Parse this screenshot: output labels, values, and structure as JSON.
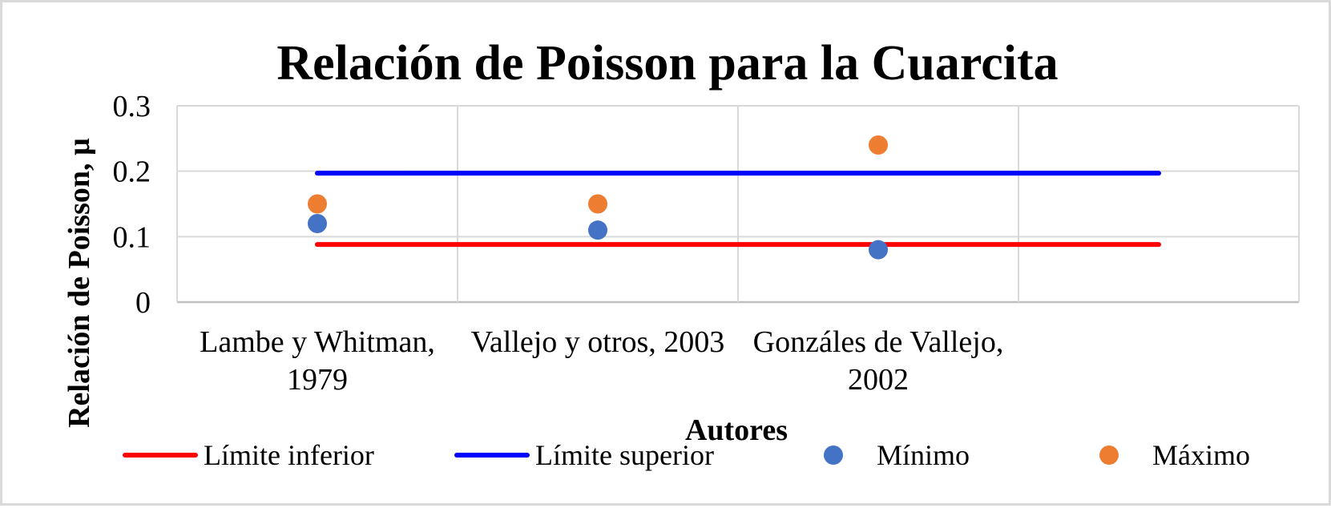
{
  "chart_data": {
    "type": "scatter",
    "title": "Relación de Poisson para la Cuarcita",
    "xlabel": "Autores",
    "ylabel": "Relación de Poisson, µ",
    "categories": [
      "Lambe y Whitman, 1979",
      "Vallejo y otros, 2003",
      "Gonzáles de Vallejo, 2002",
      ""
    ],
    "category_label_lines": [
      [
        "Lambe y Whitman,",
        "1979"
      ],
      [
        "Vallejo y otros, 2003"
      ],
      [
        "Gonzáles de Vallejo,",
        "2002"
      ],
      [
        ""
      ]
    ],
    "ylim": [
      0,
      0.3
    ],
    "yticks": [
      0,
      0.1,
      0.2,
      0.3
    ],
    "ytick_labels": [
      "0",
      "0.1",
      "0.2",
      "0.3"
    ],
    "grid": true,
    "legend_position": "bottom",
    "series": [
      {
        "name": "Límite  inferior",
        "kind": "line",
        "values": [
          0.088,
          0.088,
          0.088,
          0.088
        ],
        "color": "#ff0000"
      },
      {
        "name": "Límite  superior",
        "kind": "line",
        "values": [
          0.197,
          0.197,
          0.197,
          0.197
        ],
        "color": "#0000ff"
      },
      {
        "name": "Mínimo",
        "kind": "marker",
        "values": [
          0.12,
          0.11,
          0.08,
          null
        ],
        "color": "#4472c4"
      },
      {
        "name": "Máximo",
        "kind": "marker",
        "values": [
          0.15,
          0.15,
          0.24,
          null
        ],
        "color": "#ed7d31"
      }
    ],
    "colors": {
      "grid": "#d9d9d9",
      "axis": "#bfbfbf",
      "frame": "#d9d9d9"
    }
  }
}
